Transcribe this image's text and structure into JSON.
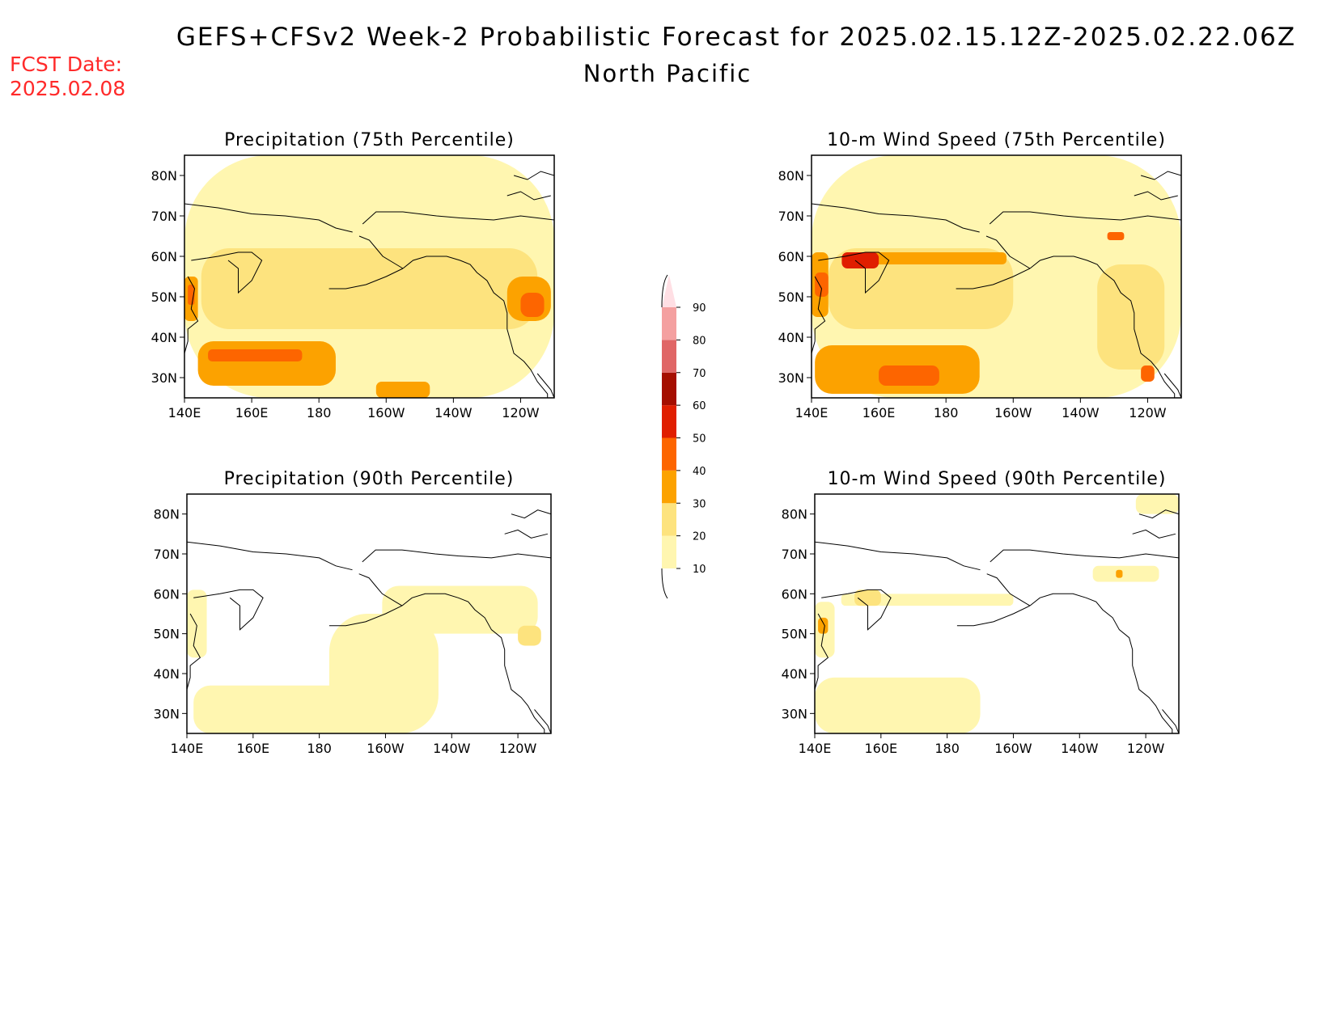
{
  "title": "GEFS+CFSv2 Week-2 Probabilistic Forecast for 2025.02.15.12Z-2025.02.22.06Z",
  "subtitle": "North Pacific",
  "forecast_date_label": "FCST Date:",
  "forecast_date": "2025.02.08",
  "colors": {
    "c10": "#fff6b0",
    "c20": "#fde37e",
    "c30": "#fca200",
    "c40": "#fd6500",
    "c50": "#e01e00",
    "c60": "#a50e00",
    "c70": "#e06666",
    "c80": "#f4a0a0",
    "c90": "#ffdfe4",
    "title_red": "#ff2a2a"
  },
  "axes": {
    "lon_labels": [
      "140E",
      "160E",
      "180",
      "160W",
      "140W",
      "120W"
    ],
    "lat_labels": [
      "80N",
      "70N",
      "60N",
      "50N",
      "40N",
      "30N"
    ],
    "lon_range": [
      "140E",
      "110W"
    ],
    "lat_range": [
      "25N",
      "85N"
    ]
  },
  "colorbar": {
    "labels": [
      "10",
      "20",
      "30",
      "40",
      "50",
      "60",
      "70",
      "80",
      "90"
    ]
  },
  "panels": [
    {
      "title": "Precipitation (75th Percentile)",
      "regions": [
        {
          "bin": 10,
          "lon": 140,
          "lat": 25,
          "lon2": 250,
          "lat2": 85
        },
        {
          "bin": 20,
          "lon": 145,
          "lat": 42,
          "lon2": 245,
          "lat2": 62
        },
        {
          "bin": 30,
          "lon": 144,
          "lat": 28,
          "lon2": 185,
          "lat2": 39
        },
        {
          "bin": 30,
          "lon": 197,
          "lat": 25,
          "lon2": 213,
          "lat2": 29
        },
        {
          "bin": 30,
          "lon": 140,
          "lat": 44,
          "lon2": 144,
          "lat2": 55
        },
        {
          "bin": 30,
          "lon": 236,
          "lat": 44,
          "lon2": 249,
          "lat2": 55
        },
        {
          "bin": 40,
          "lon": 147,
          "lat": 34,
          "lon2": 175,
          "lat2": 37
        },
        {
          "bin": 40,
          "lon": 240,
          "lat": 45,
          "lon2": 247,
          "lat2": 51
        },
        {
          "bin": 40,
          "lon": 141,
          "lat": 48,
          "lon2": 143,
          "lat2": 53
        }
      ]
    },
    {
      "title": "10-m Wind Speed (75th Percentile)",
      "regions": [
        {
          "bin": 10,
          "lon": 140,
          "lat": 25,
          "lon2": 250,
          "lat2": 85
        },
        {
          "bin": 20,
          "lon": 145,
          "lat": 42,
          "lon2": 200,
          "lat2": 62
        },
        {
          "bin": 20,
          "lon": 225,
          "lat": 32,
          "lon2": 245,
          "lat2": 58
        },
        {
          "bin": 30,
          "lon": 141,
          "lat": 26,
          "lon2": 190,
          "lat2": 38
        },
        {
          "bin": 30,
          "lon": 140,
          "lat": 45,
          "lon2": 145,
          "lat2": 61
        },
        {
          "bin": 30,
          "lon": 150,
          "lat": 58,
          "lon2": 198,
          "lat2": 61
        },
        {
          "bin": 40,
          "lon": 160,
          "lat": 28,
          "lon2": 178,
          "lat2": 33
        },
        {
          "bin": 40,
          "lon": 141,
          "lat": 50,
          "lon2": 145,
          "lat2": 56
        },
        {
          "bin": 40,
          "lon": 228,
          "lat": 64,
          "lon2": 233,
          "lat2": 66
        },
        {
          "bin": 40,
          "lon": 238,
          "lat": 29,
          "lon2": 242,
          "lat2": 33
        },
        {
          "bin": 50,
          "lon": 149,
          "lat": 57,
          "lon2": 160,
          "lat2": 61
        }
      ]
    },
    {
      "title": "Precipitation (90th Percentile)",
      "regions": [
        {
          "bin": 10,
          "lon": 142,
          "lat": 25,
          "lon2": 200,
          "lat2": 37
        },
        {
          "bin": 10,
          "lon": 183,
          "lat": 25,
          "lon2": 216,
          "lat2": 55
        },
        {
          "bin": 10,
          "lon": 199,
          "lat": 50,
          "lon2": 246,
          "lat2": 62
        },
        {
          "bin": 10,
          "lon": 140,
          "lat": 44,
          "lon2": 146,
          "lat2": 61
        },
        {
          "bin": 20,
          "lon": 240,
          "lat": 47,
          "lon2": 247,
          "lat2": 52
        }
      ]
    },
    {
      "title": "10-m Wind Speed (90th Percentile)",
      "regions": [
        {
          "bin": 10,
          "lon": 140,
          "lat": 25,
          "lon2": 190,
          "lat2": 39
        },
        {
          "bin": 10,
          "lon": 140,
          "lat": 44,
          "lon2": 146,
          "lat2": 58
        },
        {
          "bin": 10,
          "lon": 148,
          "lat": 57,
          "lon2": 200,
          "lat2": 60
        },
        {
          "bin": 10,
          "lon": 224,
          "lat": 63,
          "lon2": 244,
          "lat2": 67
        },
        {
          "bin": 10,
          "lon": 237,
          "lat": 80,
          "lon2": 250,
          "lat2": 85
        },
        {
          "bin": 20,
          "lon": 152,
          "lat": 57,
          "lon2": 160,
          "lat2": 61
        },
        {
          "bin": 30,
          "lon": 141,
          "lat": 50,
          "lon2": 144,
          "lat2": 54
        },
        {
          "bin": 30,
          "lon": 231,
          "lat": 64,
          "lon2": 233,
          "lat2": 66
        }
      ]
    }
  ]
}
